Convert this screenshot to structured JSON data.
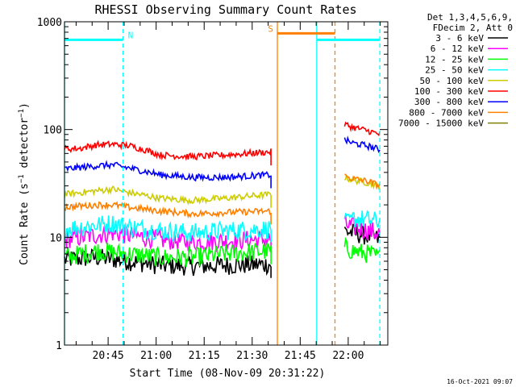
{
  "chart_data": {
    "type": "line",
    "title": "RHESSI Observing Summary Count Rates",
    "ylabel_main": "Count Rate (s",
    "ylabel_sup1": "−1",
    "ylabel_mid": " detector",
    "ylabel_sup2": "−1",
    "ylabel_end": ")",
    "xlabel": "Start Time (08-Nov-09 20:31:22)",
    "timestamp": "16-Oct-2021 09:07",
    "y_scale": "log",
    "ylim": [
      1,
      1000
    ],
    "xlim_minutes": [
      0,
      101
    ],
    "y_ticks": [
      {
        "value": 1,
        "label": "1"
      },
      {
        "value": 10,
        "label": "10"
      },
      {
        "value": 100,
        "label": "100"
      },
      {
        "value": 1000,
        "label": "1000"
      }
    ],
    "x_ticks": [
      {
        "minute": 13.63,
        "label": "20:45"
      },
      {
        "minute": 28.63,
        "label": "21:00"
      },
      {
        "minute": 43.63,
        "label": "21:15"
      },
      {
        "minute": 58.63,
        "label": "21:30"
      },
      {
        "minute": 73.63,
        "label": "21:45"
      },
      {
        "minute": 88.63,
        "label": "22:00"
      }
    ],
    "legend_header": [
      "Det 1,3,4,5,6,9,",
      "FDecim 2, Att 0"
    ],
    "legend_position": "top-right outside",
    "series": [
      {
        "name": "3 - 6 keV",
        "color": "#000000",
        "segments": [
          {
            "t": [
              0,
              10,
              20,
              30,
              40,
              50,
              64.5
            ],
            "v": [
              6.2,
              6.5,
              6.0,
              5.5,
              5.4,
              5.5,
              5.6
            ]
          },
          {
            "t": [
              87.5,
              90,
              95,
              98.5
            ],
            "v": [
              11.5,
              11,
              10.2,
              9.5
            ]
          }
        ]
      },
      {
        "name": "6 - 12 keV",
        "color": "#ff00ff",
        "segments": [
          {
            "t": [
              0,
              10,
              15,
              20,
              30,
              40,
              50,
              64.5
            ],
            "v": [
              9.5,
              10.5,
              11.0,
              10.5,
              9.5,
              9.0,
              9.3,
              9.6
            ]
          },
          {
            "t": [
              87.5,
              90,
              95,
              98.5
            ],
            "v": [
              13,
              12.5,
              11.5,
              11
            ]
          }
        ]
      },
      {
        "name": "12 - 25 keV",
        "color": "#00ff00",
        "segments": [
          {
            "t": [
              0,
              10,
              20,
              30,
              40,
              50,
              64.5
            ],
            "v": [
              6.5,
              7.5,
              7.0,
              6.5,
              6.5,
              7.0,
              7.5
            ]
          },
          {
            "t": [
              87.5,
              90,
              95,
              98.5
            ],
            "v": [
              8,
              7.5,
              7,
              6.5
            ]
          }
        ]
      },
      {
        "name": "25 - 50 keV",
        "color": "#00ffff",
        "segments": [
          {
            "t": [
              0,
              10,
              15,
              20,
              30,
              40,
              50,
              64.5
            ],
            "v": [
              12.0,
              13.0,
              13.5,
              12.5,
              11.5,
              11.0,
              11.5,
              12.0
            ]
          },
          {
            "t": [
              87.5,
              90,
              95,
              98.5
            ],
            "v": [
              15.5,
              15,
              14.5,
              14
            ]
          }
        ]
      },
      {
        "name": "50 - 100 keV",
        "color": "#cccc00",
        "segments": [
          {
            "t": [
              0,
              10,
              15,
              20,
              30,
              40,
              50,
              64.5
            ],
            "v": [
              25,
              27,
              28,
              26,
              23,
              22,
              23,
              25
            ]
          },
          {
            "t": [
              87.5,
              90,
              95,
              98.5
            ],
            "v": [
              36,
              34,
              32,
              30
            ]
          }
        ]
      },
      {
        "name": "100 - 300 keV",
        "color": "#ff0000",
        "segments": [
          {
            "t": [
              0,
              5,
              10,
              15,
              20,
              25,
              30,
              40,
              50,
              64.5
            ],
            "v": [
              66,
              67,
              72,
              73,
              71,
              65,
              58,
              56,
              58,
              62
            ]
          },
          {
            "t": [
              87.5,
              90,
              95,
              98.5
            ],
            "v": [
              112,
              105,
              97,
              90
            ]
          }
        ]
      },
      {
        "name": "300 - 800 keV",
        "color": "#0000ff",
        "segments": [
          {
            "t": [
              0,
              10,
              15,
              20,
              30,
              40,
              50,
              64.5
            ],
            "v": [
              43,
              46,
              47,
              44,
              38,
              36,
              36,
              38
            ]
          },
          {
            "t": [
              87.5,
              90,
              95,
              98.5
            ],
            "v": [
              80,
              75,
              70,
              65
            ]
          }
        ]
      },
      {
        "name": "800 - 7000 keV",
        "color": "#ff8000",
        "segments": [
          {
            "t": [
              0,
              10,
              15,
              20,
              30,
              40,
              50,
              64.5
            ],
            "v": [
              19,
              20,
              20,
              19,
              17.5,
              16.5,
              17,
              17.5
            ]
          },
          {
            "t": [
              87.5,
              90,
              95,
              98.5
            ],
            "v": [
              37,
              35,
              33,
              30
            ]
          }
        ]
      },
      {
        "name": "7000 - 15000 keV",
        "color": "#808000",
        "segments": []
      }
    ],
    "annotations": [
      {
        "label": "N",
        "color": "#00ffff",
        "bar_start": 0,
        "bar_end": 18.3,
        "bar_value": 680
      },
      {
        "label": "S",
        "color": "#ff8000",
        "bar_start": 66.5,
        "bar_end": 84.5,
        "bar_value": 780
      },
      {
        "label": "",
        "color": "#00ffff",
        "bar_start": 78.8,
        "bar_end": 98.5,
        "bar_value": 680
      }
    ],
    "vertical_lines": [
      {
        "minute": 0,
        "color": "#00ffff",
        "style": "solid"
      },
      {
        "minute": 18.3,
        "color": "#00ffff",
        "style": "dashed"
      },
      {
        "minute": 66.5,
        "color": "#ff8000",
        "style": "solid"
      },
      {
        "minute": 78.8,
        "color": "#00ffff",
        "style": "solid"
      },
      {
        "minute": 84.5,
        "color": "#ff8000",
        "style": "dashed"
      },
      {
        "minute": 98.5,
        "color": "#00ffff",
        "style": "dashed"
      }
    ]
  }
}
